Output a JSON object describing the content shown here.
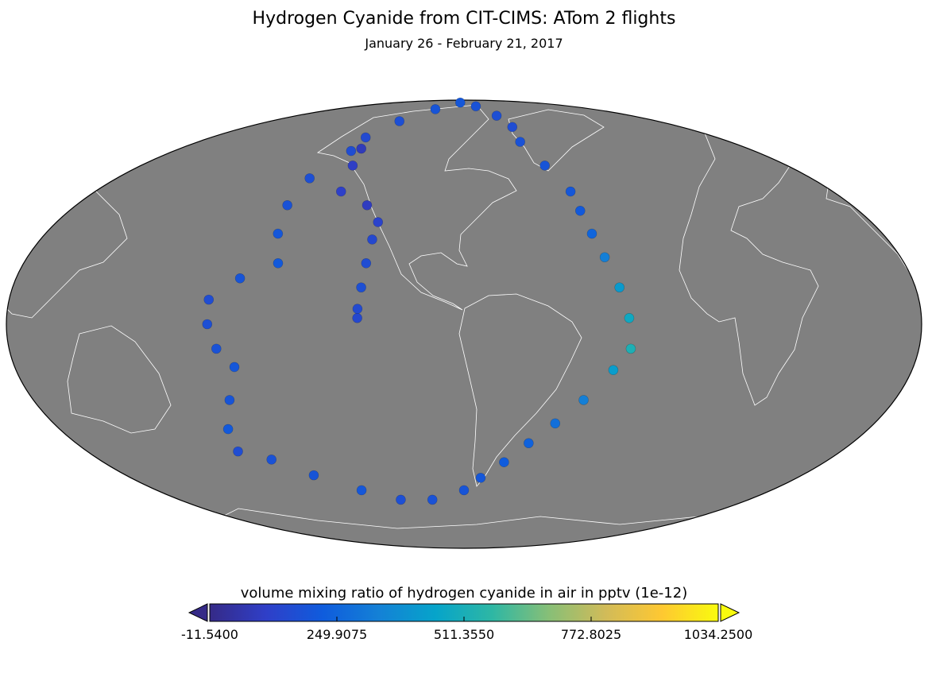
{
  "chart_data": {
    "type": "map-scatter",
    "title": "Hydrogen Cyanide from CIT-CIMS: ATom 2 flights",
    "subtitle": "January 26 - February 21, 2017",
    "projection": "mollweide",
    "central_longitude": -80,
    "map_background": "#808080",
    "coastline_color": "#ffffff",
    "lon": [
      -118,
      -119,
      -120,
      -121,
      -122,
      -122,
      -125,
      -140,
      -142,
      -145,
      -150,
      -140,
      -120,
      -90,
      -60,
      -45,
      -40,
      -42,
      -35,
      -28,
      -27,
      -25,
      -22,
      -18,
      -15,
      -14,
      -20,
      -30,
      -40,
      -50,
      -60,
      -71,
      -80,
      -100,
      -120,
      -140,
      -160,
      -175,
      172,
      175,
      -178,
      -172,
      -178,
      179,
      179,
      -170,
      -156,
      -160,
      -162,
      -160,
      -150
    ],
    "lat": [
      34,
      28,
      20,
      12,
      5,
      2,
      40,
      45,
      55,
      62,
      67,
      75,
      82,
      87,
      84,
      78,
      72,
      65,
      55,
      45,
      38,
      30,
      22,
      12,
      2,
      -8,
      -15,
      -25,
      -33,
      -40,
      -47,
      -53,
      -58,
      -62,
      -62,
      -58,
      -52,
      -46,
      -43,
      -35,
      -25,
      -14,
      -8,
      0,
      8,
      15,
      20,
      30,
      40,
      50,
      61
    ],
    "values": [
      120,
      140,
      160,
      170,
      150,
      140,
      90,
      110,
      100,
      80,
      150,
      170,
      190,
      200,
      180,
      170,
      160,
      180,
      190,
      200,
      210,
      250,
      330,
      420,
      480,
      520,
      430,
      330,
      280,
      240,
      220,
      200,
      190,
      180,
      170,
      200,
      190,
      180,
      160,
      210,
      190,
      200,
      180,
      170,
      160,
      190,
      210,
      200,
      180,
      170,
      160
    ],
    "colorbar": {
      "label": "volume mixing ratio of hydrogen cyanide in air in pptv (1e-12)",
      "clim": [
        -11.54,
        1034.25
      ],
      "ticks": [
        {
          "value": -11.54,
          "label": "-11.5400"
        },
        {
          "value": 249.9075,
          "label": "249.9075"
        },
        {
          "value": 511.355,
          "label": "511.3550"
        },
        {
          "value": 772.8025,
          "label": "772.8025"
        },
        {
          "value": 1034.25,
          "label": "1034.2500"
        }
      ],
      "extend": "both"
    },
    "colormap": [
      "#352a87",
      "#2f3fc8",
      "#0f5cdd",
      "#1481d6",
      "#06a4ca",
      "#2eb7a4",
      "#87bf77",
      "#d1bb59",
      "#fec832",
      "#f9fb0e"
    ]
  }
}
